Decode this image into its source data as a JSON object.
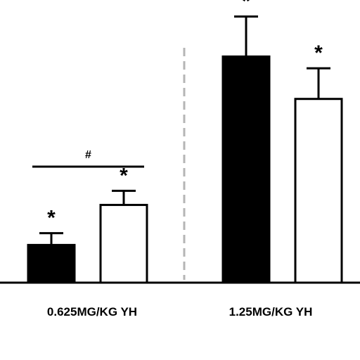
{
  "chart_data": {
    "type": "bar",
    "categories": [
      "0.625MG/KG YH",
      "1.25MG/KG YH"
    ],
    "series": [
      {
        "color": "#000000",
        "values": [
          16,
          96
        ],
        "errors": [
          5,
          17
        ],
        "marks": [
          "*",
          "*"
        ]
      },
      {
        "color": "#ffffff",
        "values": [
          33,
          78
        ],
        "errors": [
          6,
          13
        ],
        "marks": [
          "*",
          "*"
        ]
      }
    ],
    "significance": [
      {
        "category": "0.625MG/KG YH",
        "mark": "#"
      }
    ],
    "xlabel": "",
    "ylabel": "",
    "ylim": [
      0,
      120
    ],
    "grid": false,
    "group_divider": "dashed"
  }
}
